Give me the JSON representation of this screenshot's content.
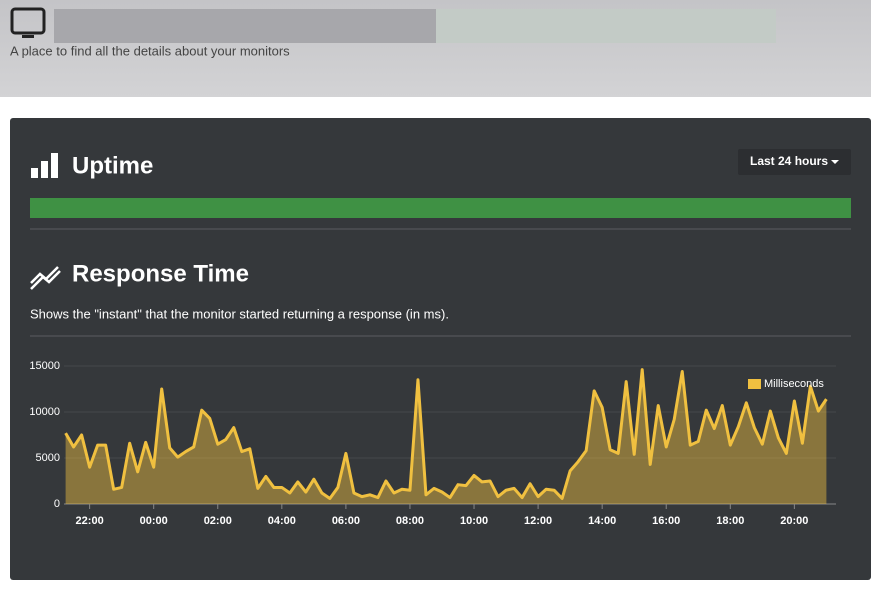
{
  "header": {
    "subtitle": "A place to find all the details about your monitors"
  },
  "uptime": {
    "title": "Uptime",
    "range_button": "Last 24 hours"
  },
  "response": {
    "title": "Response Time",
    "description": "Shows the \"instant\" that the monitor started returning a response (in ms)."
  },
  "chart_data": {
    "type": "line",
    "series": [
      {
        "name": "Milliseconds",
        "color": "#f0c040",
        "x": [
          21.25,
          21.5,
          21.75,
          22,
          22.25,
          22.5,
          22.75,
          23,
          23.25,
          23.5,
          23.75,
          24,
          24.25,
          24.5,
          24.75,
          25,
          25.25,
          25.5,
          25.75,
          26,
          26.25,
          26.5,
          26.75,
          27,
          27.25,
          27.5,
          27.75,
          28,
          28.25,
          28.5,
          28.75,
          29,
          29.25,
          29.5,
          29.75,
          30,
          30.25,
          30.5,
          30.75,
          31,
          31.25,
          31.5,
          31.75,
          32,
          32.25,
          32.5,
          32.75,
          33,
          33.25,
          33.5,
          33.75,
          34,
          34.25,
          34.5,
          34.75,
          35,
          35.25,
          35.5,
          35.75,
          36,
          36.25,
          36.5,
          36.75,
          37,
          37.25,
          37.5,
          37.75,
          38,
          38.25,
          38.5,
          38.75,
          39,
          39.25,
          39.5,
          39.75,
          40,
          40.25,
          40.5,
          40.75,
          41,
          41.25,
          41.5,
          41.75,
          42,
          42.25,
          42.5,
          42.75,
          43,
          43.25,
          43.5,
          43.75,
          44,
          44.25,
          44.5,
          44.75,
          45
        ],
        "values": [
          7700,
          6200,
          7500,
          4000,
          6400,
          6400,
          1600,
          1800,
          6600,
          3500,
          6700,
          4000,
          12500,
          6100,
          5100,
          5700,
          6200,
          10200,
          9300,
          6500,
          7000,
          8300,
          5700,
          6000,
          1700,
          3000,
          1800,
          1800,
          1200,
          2400,
          1300,
          2700,
          1200,
          600,
          1800,
          5500,
          1200,
          800,
          1000,
          700,
          2500,
          1200,
          1600,
          1500,
          13500,
          1000,
          1700,
          1300,
          700,
          2100,
          2000,
          3100,
          2400,
          2500,
          800,
          1500,
          1700,
          700,
          2200,
          800,
          1600,
          1500,
          600,
          3600,
          4600,
          5800,
          12300,
          10500,
          5900,
          5500,
          13300,
          5400,
          14600,
          4300,
          10700,
          6200,
          9200,
          14400,
          6400,
          6800,
          10200,
          8200,
          10700,
          6400,
          8400,
          11000,
          8300,
          6500,
          10100,
          7200,
          5500,
          11200,
          6600,
          12800,
          10100,
          11400
        ]
      }
    ],
    "xlim": [
      21.2,
      45.3
    ],
    "xticks": [
      {
        "value": 22,
        "label": "22:00"
      },
      {
        "value": 24,
        "label": "00:00"
      },
      {
        "value": 26,
        "label": "02:00"
      },
      {
        "value": 28,
        "label": "04:00"
      },
      {
        "value": 30,
        "label": "06:00"
      },
      {
        "value": 32,
        "label": "08:00"
      },
      {
        "value": 34,
        "label": "10:00"
      },
      {
        "value": 36,
        "label": "12:00"
      },
      {
        "value": 38,
        "label": "14:00"
      },
      {
        "value": 40,
        "label": "16:00"
      },
      {
        "value": 42,
        "label": "18:00"
      },
      {
        "value": 44,
        "label": "20:00"
      }
    ],
    "ylim": [
      0,
      15000
    ],
    "yticks": [
      0,
      5000,
      10000,
      15000
    ],
    "grid": true,
    "legend": "top-right"
  }
}
